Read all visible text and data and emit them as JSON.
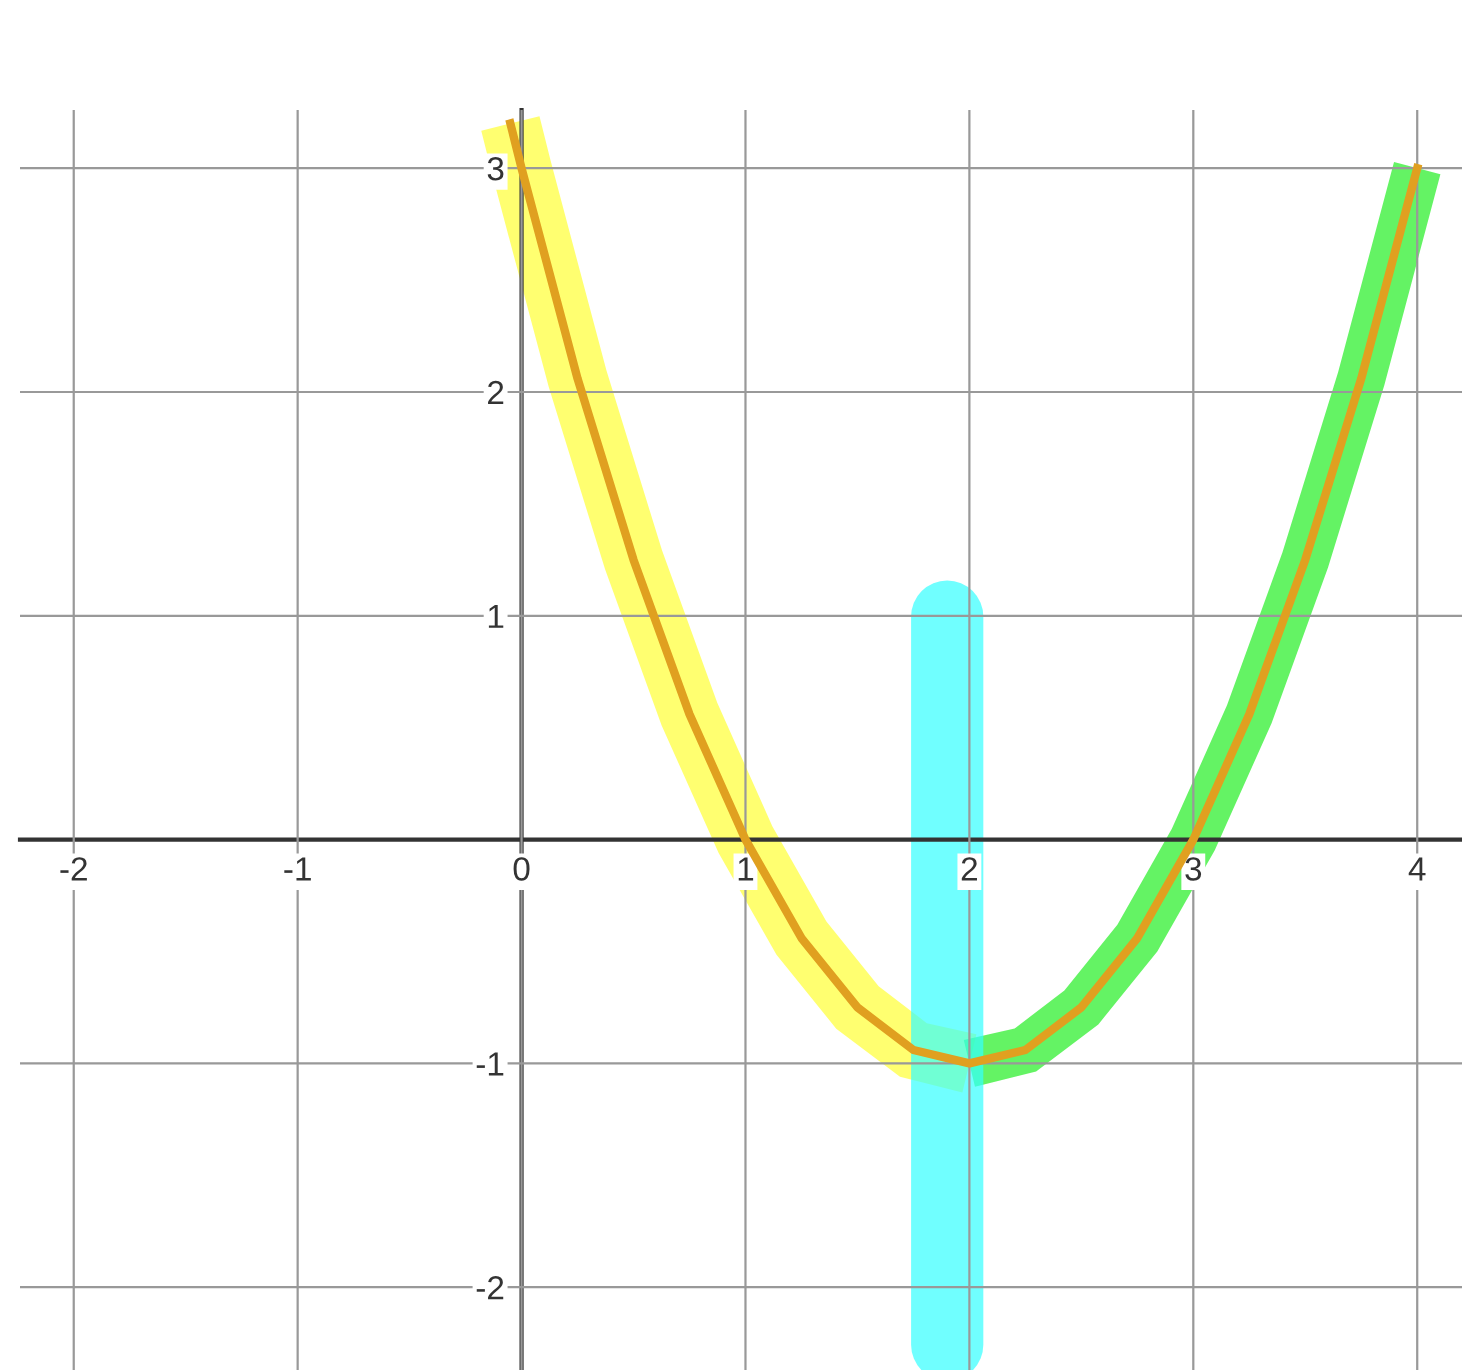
{
  "chart_data": {
    "type": "line",
    "x": [
      -0.05,
      0,
      0.25,
      0.5,
      0.75,
      1,
      1.25,
      1.5,
      1.75,
      2,
      2.25,
      2.5,
      2.75,
      3,
      3.25,
      3.5,
      3.75,
      4
    ],
    "series": [
      {
        "color": "#e0a020",
        "values": [
          3.2,
          3,
          2.06,
          1.25,
          0.56,
          0,
          -0.44,
          -0.75,
          -0.94,
          -1,
          -0.94,
          -0.75,
          -0.44,
          0,
          0.56,
          1.25,
          2.06,
          3
        ]
      }
    ],
    "xlim": [
      -2.24,
      4.2
    ],
    "ylim": [
      -2.37,
      3.26
    ],
    "xticks": [
      -2,
      -1,
      0,
      1,
      2,
      3,
      4
    ],
    "yticks": [
      -2,
      -1,
      1,
      2,
      3
    ],
    "grid": true
  }
}
